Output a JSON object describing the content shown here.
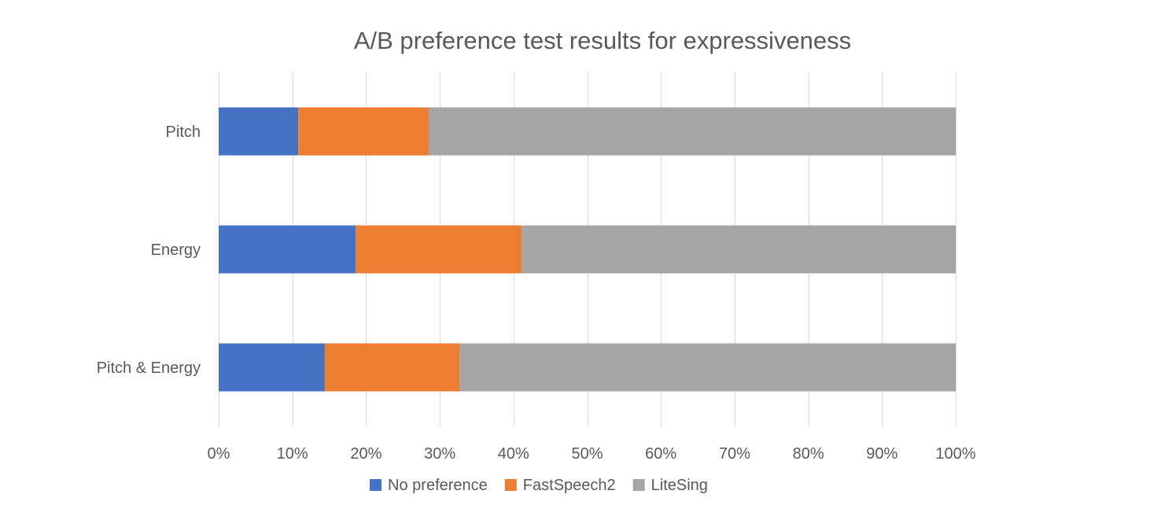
{
  "chart_data": {
    "type": "bar",
    "orientation": "horizontal",
    "stacked": "percent",
    "title": "A/B preference test results for expressiveness",
    "categories": [
      "Pitch",
      "Energy",
      "Pitch & Energy"
    ],
    "series": [
      {
        "name": "No preference",
        "values": [
          10.8,
          18.6,
          14.4
        ],
        "color": "#4472C4"
      },
      {
        "name": "FastSpeech2",
        "values": [
          17.7,
          22.5,
          18.3
        ],
        "color": "#ED7D31"
      },
      {
        "name": "LiteSing",
        "values": [
          71.5,
          58.9,
          67.3
        ],
        "color": "#A5A5A5"
      }
    ],
    "x_ticks": [
      "0%",
      "10%",
      "20%",
      "30%",
      "40%",
      "50%",
      "60%",
      "70%",
      "80%",
      "90%",
      "100%"
    ],
    "xlim": [
      0,
      100
    ],
    "grid": true,
    "legend_position": "bottom",
    "colors": {
      "gridline": "#D9D9D9",
      "text": "#595959",
      "title": "#595959"
    }
  }
}
